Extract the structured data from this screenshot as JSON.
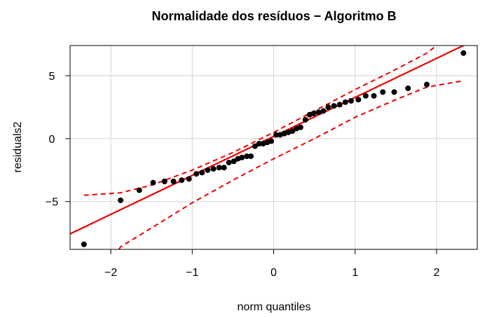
{
  "chart_data": {
    "type": "scatter",
    "title": "Normalidade dos resíduos − Algoritmo B",
    "xlabel": "norm quantiles",
    "ylabel": "residuals2",
    "xlim": [
      -2.5,
      2.5
    ],
    "ylim": [
      -8.8,
      7.4
    ],
    "x_ticks": [
      -2,
      -1,
      0,
      1,
      2
    ],
    "x_tick_labels": [
      "−2",
      "−1",
      "0",
      "1",
      "2"
    ],
    "y_ticks": [
      -5,
      0,
      5
    ],
    "y_tick_labels": [
      "−5",
      "0",
      "5"
    ],
    "grid": true,
    "colors": {
      "points": "#000000",
      "reference_line": "#ee0000",
      "envelope": "#ee0000",
      "grid": "#d3d3d3"
    },
    "points": {
      "x": [
        -2.33,
        -1.88,
        -1.65,
        -1.48,
        -1.34,
        -1.23,
        -1.13,
        -1.04,
        -0.95,
        -0.88,
        -0.81,
        -0.74,
        -0.67,
        -0.61,
        -0.55,
        -0.49,
        -0.44,
        -0.39,
        -0.33,
        -0.28,
        -0.23,
        -0.18,
        -0.13,
        -0.08,
        -0.03,
        0.03,
        0.08,
        0.13,
        0.18,
        0.23,
        0.28,
        0.33,
        0.39,
        0.44,
        0.49,
        0.55,
        0.61,
        0.67,
        0.74,
        0.81,
        0.88,
        0.95,
        1.04,
        1.13,
        1.23,
        1.34,
        1.48,
        1.65,
        1.88,
        2.33
      ],
      "y": [
        -8.4,
        -4.9,
        -4.1,
        -3.5,
        -3.4,
        -3.4,
        -3.3,
        -3.2,
        -2.8,
        -2.7,
        -2.5,
        -2.4,
        -2.3,
        -2.3,
        -1.9,
        -1.8,
        -1.6,
        -1.5,
        -1.4,
        -1.4,
        -0.6,
        -0.4,
        -0.4,
        -0.3,
        -0.2,
        0.3,
        0.3,
        0.4,
        0.5,
        0.6,
        0.8,
        0.9,
        1.5,
        1.9,
        2.0,
        2.1,
        2.2,
        2.5,
        2.6,
        2.7,
        2.9,
        3.0,
        3.1,
        3.4,
        3.4,
        3.7,
        3.7,
        4.0,
        4.3,
        6.8
      ]
    },
    "reference_line": {
      "intercept": 0.18,
      "slope": 3.1
    },
    "envelope_upper": {
      "x": [
        -2.33,
        -1.88,
        -1.5,
        -1.0,
        -0.5,
        0.0,
        0.5,
        1.0,
        1.5,
        1.88,
        2.0
      ],
      "y": [
        -4.5,
        -4.3,
        -3.7,
        -2.5,
        -1.1,
        0.5,
        2.2,
        3.9,
        5.5,
        6.8,
        7.4
      ]
    },
    "envelope_lower": {
      "x": [
        -1.9,
        -1.88,
        -1.5,
        -1.0,
        -0.5,
        0.0,
        0.5,
        1.0,
        1.5,
        1.88,
        2.33
      ],
      "y": [
        -8.8,
        -8.6,
        -7.1,
        -5.1,
        -3.3,
        -1.6,
        0.0,
        1.7,
        3.1,
        4.1,
        4.6
      ]
    }
  }
}
